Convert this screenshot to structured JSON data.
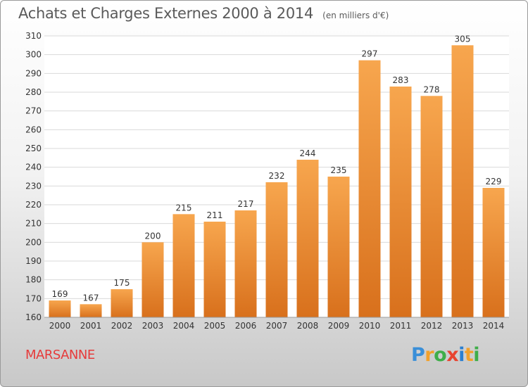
{
  "header": {
    "title": "Achats et Charges Externes 2000 à 2014",
    "unit": "(en milliers d'€)"
  },
  "footer": {
    "commune": "MARSANNE",
    "logo": {
      "letters": [
        "P",
        "r",
        "o",
        "x",
        "i",
        "t",
        "i"
      ],
      "colors": [
        "#3a8fd8",
        "#f2a12b",
        "#3fae49",
        "#e8442f",
        "#2b7fd0",
        "#f2a12b",
        "#3fae49"
      ]
    }
  },
  "colors": {
    "bar_light": "#f7a64e",
    "bar_dark": "#d8701c",
    "grid": "#d9d9d9",
    "axis_text": "#333333",
    "commune": "#e63b3b"
  },
  "chart_data": {
    "type": "bar",
    "categories": [
      "2000",
      "2001",
      "2002",
      "2003",
      "2004",
      "2005",
      "2006",
      "2007",
      "2008",
      "2009",
      "2010",
      "2011",
      "2012",
      "2013",
      "2014"
    ],
    "values": [
      169,
      167,
      175,
      200,
      215,
      211,
      217,
      232,
      244,
      235,
      297,
      283,
      278,
      305,
      229
    ],
    "ylim": [
      160,
      310
    ],
    "yticks": [
      160,
      170,
      180,
      190,
      200,
      210,
      220,
      230,
      240,
      250,
      260,
      270,
      280,
      290,
      300,
      310
    ],
    "grid": true,
    "data_labels": true
  }
}
